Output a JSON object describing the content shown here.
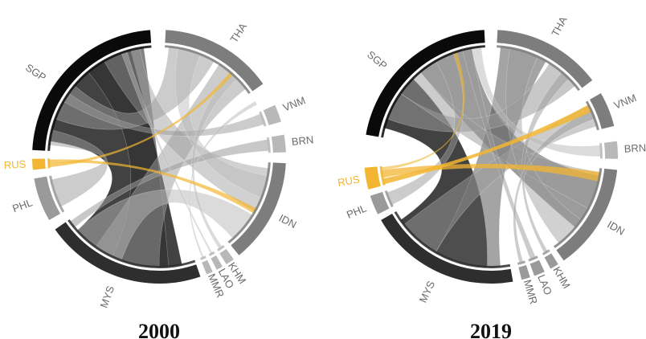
{
  "colors": {
    "black": "#0a0a0a",
    "dark": "#2e2e2e",
    "mid": "#5a5a5a",
    "grey": "#7d7d7d",
    "light": "#9a9a9a",
    "pale": "#b8b8b8",
    "label": "#6b6b6b",
    "highlight": "#f2b632",
    "background": "#ffffff"
  },
  "diagrams": [
    {
      "year": "2000",
      "segments": [
        {
          "name": "SGP",
          "tone": "black"
        },
        {
          "name": "THA",
          "tone": "grey"
        },
        {
          "name": "VNM",
          "tone": "pale"
        },
        {
          "name": "BRN",
          "tone": "pale"
        },
        {
          "name": "IDN",
          "tone": "grey"
        },
        {
          "name": "KHM",
          "tone": "pale"
        },
        {
          "name": "LAO",
          "tone": "pale"
        },
        {
          "name": "MMR",
          "tone": "pale"
        },
        {
          "name": "MYS",
          "tone": "dark"
        },
        {
          "name": "PHL",
          "tone": "light"
        },
        {
          "name": "RUS",
          "tone": "highlight"
        }
      ]
    },
    {
      "year": "2019",
      "segments": [
        {
          "name": "SGP",
          "tone": "black"
        },
        {
          "name": "THA",
          "tone": "grey"
        },
        {
          "name": "VNM",
          "tone": "grey"
        },
        {
          "name": "BRN",
          "tone": "pale"
        },
        {
          "name": "IDN",
          "tone": "grey"
        },
        {
          "name": "KHM",
          "tone": "light"
        },
        {
          "name": "LAO",
          "tone": "light"
        },
        {
          "name": "MMR",
          "tone": "light"
        },
        {
          "name": "MYS",
          "tone": "dark"
        },
        {
          "name": "PHL",
          "tone": "light"
        },
        {
          "name": "RUS",
          "tone": "highlight"
        }
      ]
    }
  ]
}
